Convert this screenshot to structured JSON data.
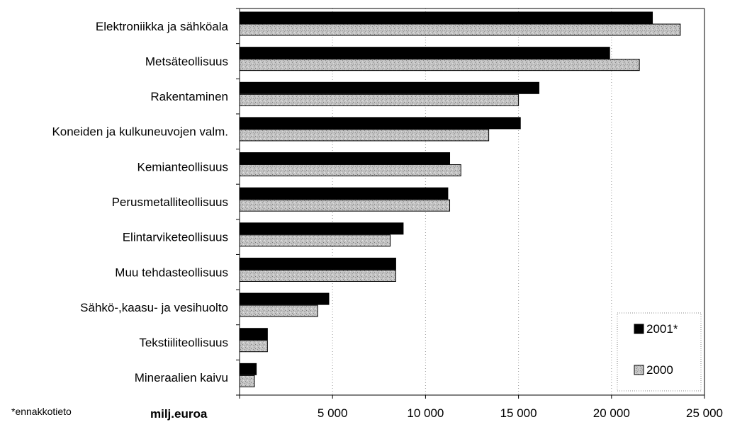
{
  "chart_data": {
    "type": "bar",
    "orientation": "horizontal",
    "categories": [
      "Elektroniikka ja sähköala",
      "Metsäteollisuus",
      "Rakentaminen",
      "Koneiden ja kulkuneuvojen valm.",
      "Kemianteollisuus",
      "Perusmetalliteollisuus",
      "Elintarviketeollisuus",
      "Muu tehdasteollisuus",
      "Sähkö-,kaasu- ja vesihuolto",
      "Tekstiiliteollisuus",
      "Mineraalien kaivu"
    ],
    "series": [
      {
        "name": "2001*",
        "color": "#000000",
        "values": [
          22200,
          19900,
          16100,
          15100,
          11300,
          11200,
          8800,
          8400,
          4800,
          1500,
          900
        ]
      },
      {
        "name": "2000",
        "color": "#bdbdbd",
        "values": [
          23700,
          21500,
          15000,
          13400,
          11900,
          11300,
          8100,
          8400,
          4200,
          1500,
          800
        ]
      }
    ],
    "x_ticks": [
      "5 000",
      "10 000",
      "15 000",
      "20 000",
      "25 000"
    ],
    "x_tick_values": [
      5000,
      10000,
      15000,
      20000,
      25000
    ],
    "xlim": [
      0,
      25000
    ],
    "xlabel": "milj.euroa",
    "footnote": "*ennakkotieto",
    "grid": "vertical dotted",
    "legend_position": "bottom-right"
  }
}
